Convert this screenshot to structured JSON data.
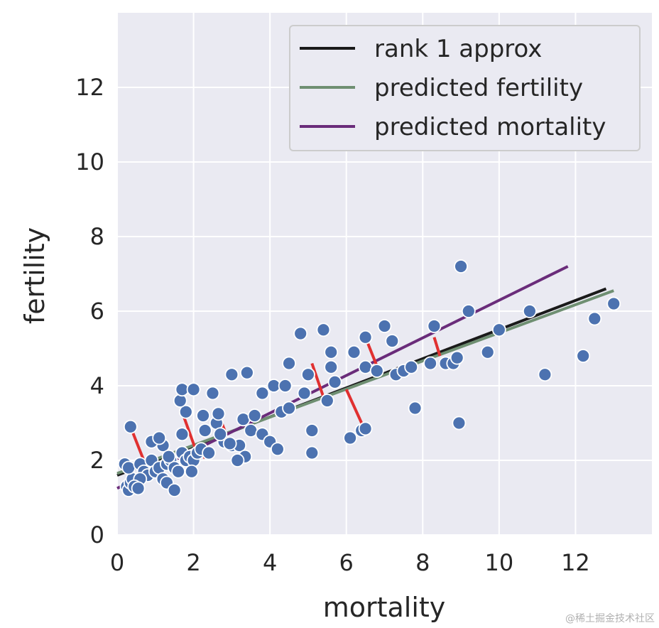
{
  "chart_data": {
    "type": "scatter",
    "xlabel": "mortality",
    "ylabel": "fertility",
    "xlim": [
      0,
      14
    ],
    "ylim": [
      0,
      14
    ],
    "xticks": [
      0,
      2,
      4,
      6,
      8,
      10,
      12
    ],
    "yticks": [
      0,
      2,
      4,
      6,
      8,
      10,
      12
    ],
    "grid": true,
    "legend_position": "top-right",
    "points": [
      [
        0.2,
        1.9
      ],
      [
        0.25,
        1.3
      ],
      [
        0.3,
        1.2
      ],
      [
        0.35,
        1.4
      ],
      [
        0.4,
        1.5
      ],
      [
        0.3,
        1.8
      ],
      [
        0.5,
        1.3
      ],
      [
        0.6,
        1.9
      ],
      [
        0.7,
        1.7
      ],
      [
        0.8,
        1.6
      ],
      [
        0.9,
        2.0
      ],
      [
        1.0,
        1.7
      ],
      [
        1.1,
        1.8
      ],
      [
        1.2,
        2.4
      ],
      [
        1.3,
        1.9
      ],
      [
        1.4,
        2.0
      ],
      [
        1.5,
        1.8
      ],
      [
        1.6,
        1.7
      ],
      [
        1.7,
        2.2
      ],
      [
        1.8,
        2.0
      ],
      [
        1.9,
        2.1
      ],
      [
        2.0,
        2.0
      ],
      [
        2.1,
        2.2
      ],
      [
        2.2,
        2.3
      ],
      [
        0.9,
        2.5
      ],
      [
        1.1,
        2.6
      ],
      [
        1.2,
        1.5
      ],
      [
        1.3,
        1.4
      ],
      [
        1.5,
        1.2
      ],
      [
        1.7,
        2.7
      ],
      [
        1.8,
        3.3
      ],
      [
        1.65,
        3.6
      ],
      [
        1.7,
        3.9
      ],
      [
        2.0,
        3.9
      ],
      [
        1.95,
        1.7
      ],
      [
        2.4,
        2.2
      ],
      [
        2.3,
        2.8
      ],
      [
        2.6,
        3.0
      ],
      [
        2.8,
        2.5
      ],
      [
        2.5,
        3.8
      ],
      [
        3.0,
        4.3
      ],
      [
        3.4,
        4.35
      ],
      [
        3.0,
        2.4
      ],
      [
        3.2,
        2.4
      ],
      [
        3.5,
        2.8
      ],
      [
        3.3,
        3.1
      ],
      [
        3.6,
        3.2
      ],
      [
        3.8,
        3.8
      ],
      [
        3.8,
        2.7
      ],
      [
        4.0,
        2.5
      ],
      [
        4.1,
        4.0
      ],
      [
        4.3,
        3.3
      ],
      [
        4.5,
        3.4
      ],
      [
        4.2,
        2.3
      ],
      [
        4.5,
        4.6
      ],
      [
        4.4,
        4.0
      ],
      [
        4.8,
        5.4
      ],
      [
        4.9,
        3.8
      ],
      [
        5.1,
        2.8
      ],
      [
        5.0,
        4.3
      ],
      [
        5.1,
        2.2
      ],
      [
        5.4,
        5.5
      ],
      [
        5.5,
        3.6
      ],
      [
        5.6,
        4.9
      ],
      [
        5.6,
        4.5
      ],
      [
        5.7,
        4.1
      ],
      [
        6.1,
        2.6
      ],
      [
        6.2,
        4.9
      ],
      [
        6.4,
        2.8
      ],
      [
        6.5,
        2.85
      ],
      [
        6.5,
        5.3
      ],
      [
        6.5,
        4.5
      ],
      [
        6.8,
        4.4
      ],
      [
        7.0,
        5.6
      ],
      [
        7.2,
        5.2
      ],
      [
        7.3,
        4.3
      ],
      [
        7.5,
        4.4
      ],
      [
        7.8,
        3.4
      ],
      [
        7.7,
        4.5
      ],
      [
        8.2,
        4.6
      ],
      [
        8.3,
        5.6
      ],
      [
        8.6,
        4.6
      ],
      [
        8.8,
        4.6
      ],
      [
        8.9,
        4.75
      ],
      [
        8.95,
        3.0
      ],
      [
        9.0,
        7.2
      ],
      [
        9.2,
        6.0
      ],
      [
        9.7,
        4.9
      ],
      [
        10.0,
        5.5
      ],
      [
        10.8,
        6.0
      ],
      [
        11.2,
        4.3
      ],
      [
        12.2,
        4.8
      ],
      [
        12.5,
        5.8
      ],
      [
        13.0,
        6.2
      ],
      [
        0.35,
        2.9
      ],
      [
        0.6,
        1.5
      ],
      [
        2.7,
        2.7
      ],
      [
        0.45,
        1.3
      ],
      [
        0.55,
        1.25
      ],
      [
        1.35,
        2.1
      ],
      [
        2.25,
        3.2
      ],
      [
        2.65,
        3.25
      ],
      [
        3.35,
        2.1
      ],
      [
        3.15,
        2.0
      ],
      [
        2.95,
        2.45
      ]
    ],
    "series": [
      {
        "name": "rank 1 approx",
        "color": "#1a1a1a",
        "x": [
          0.0,
          12.8
        ],
        "y": [
          1.6,
          6.6
        ]
      },
      {
        "name": "predicted fertility",
        "color": "#6f8f72",
        "x": [
          0.0,
          13.0
        ],
        "y": [
          1.65,
          6.55
        ]
      },
      {
        "name": "predicted mortality",
        "color": "#6a2c7a",
        "x": [
          0.0,
          11.8
        ],
        "y": [
          1.25,
          7.2
        ]
      }
    ],
    "residual_segments": [
      [
        0.35,
        2.9,
        0.85,
        1.6
      ],
      [
        1.15,
        2.6,
        1.5,
        1.8
      ],
      [
        1.7,
        3.3,
        2.05,
        2.3
      ],
      [
        2.65,
        3.25,
        2.85,
        2.7
      ],
      [
        5.1,
        4.6,
        5.4,
        3.7
      ],
      [
        6.0,
        3.9,
        6.4,
        3.0
      ],
      [
        6.5,
        5.3,
        6.85,
        4.4
      ],
      [
        8.3,
        5.3,
        8.45,
        4.8
      ],
      [
        0.95,
        2.0,
        1.05,
        1.6
      ],
      [
        2.2,
        2.3,
        2.3,
        2.05
      ]
    ],
    "point_color": "#4c72b0",
    "residual_color": "#e03030"
  },
  "watermark": "@稀土掘金技术社区"
}
